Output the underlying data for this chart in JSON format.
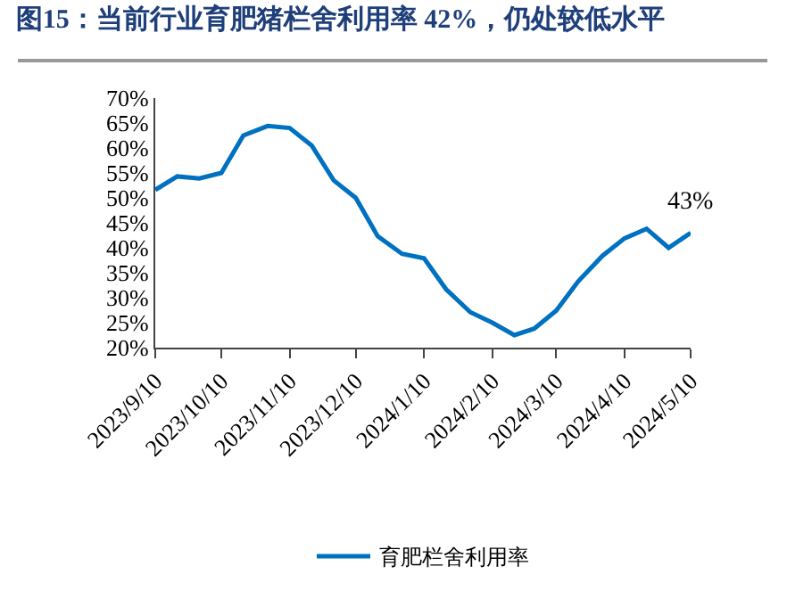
{
  "chart_data": {
    "type": "line",
    "title": "图15：当前行业育肥猪栏舍利用率 42%，仍处较低水平",
    "x": [
      "2023-09-10",
      "2023-09-20",
      "2023-09-30",
      "2023-10-10",
      "2023-10-20",
      "2023-10-31",
      "2023-11-10",
      "2023-11-20",
      "2023-11-30",
      "2023-12-10",
      "2023-12-20",
      "2023-12-31",
      "2024-01-10",
      "2024-01-20",
      "2024-01-31",
      "2024-02-10",
      "2024-02-20",
      "2024-02-29",
      "2024-03-10",
      "2024-03-20",
      "2024-03-31",
      "2024-04-10",
      "2024-04-20",
      "2024-04-30",
      "2024-05-10"
    ],
    "series": [
      {
        "name": "育肥栏舍利用率",
        "color": "#0070c0",
        "values": [
          51.6,
          54.3,
          53.9,
          55.0,
          62.5,
          64.4,
          64.0,
          60.5,
          53.5,
          50.0,
          42.3,
          38.8,
          37.9,
          31.7,
          27.1,
          25.0,
          22.5,
          23.8,
          27.4,
          33.3,
          38.4,
          41.9,
          43.8,
          40.0,
          43.0
        ]
      }
    ],
    "xlim": [
      "2023-09-10",
      "2024-05-10"
    ],
    "xticks": [
      {
        "value": "2023-09-10",
        "label": "2023/9/10"
      },
      {
        "value": "2023-10-10",
        "label": "2023/10/10"
      },
      {
        "value": "2023-11-10",
        "label": "2023/11/10"
      },
      {
        "value": "2023-12-10",
        "label": "2023/12/10"
      },
      {
        "value": "2024-01-10",
        "label": "2024/1/10"
      },
      {
        "value": "2024-02-10",
        "label": "2024/2/10"
      },
      {
        "value": "2024-03-10",
        "label": "2024/3/10"
      },
      {
        "value": "2024-04-10",
        "label": "2024/4/10"
      },
      {
        "value": "2024-05-10",
        "label": "2024/5/10"
      }
    ],
    "ylim": [
      20,
      70
    ],
    "yticks": [
      {
        "value": 20,
        "label": "20%"
      },
      {
        "value": 25,
        "label": "25%"
      },
      {
        "value": 30,
        "label": "30%"
      },
      {
        "value": 35,
        "label": "35%"
      },
      {
        "value": 40,
        "label": "40%"
      },
      {
        "value": 45,
        "label": "45%"
      },
      {
        "value": 50,
        "label": "50%"
      },
      {
        "value": 55,
        "label": "55%"
      },
      {
        "value": 60,
        "label": "60%"
      },
      {
        "value": 65,
        "label": "65%"
      },
      {
        "value": 70,
        "label": "70%"
      }
    ],
    "annotations": [
      {
        "text": "43%",
        "x": "2024-05-10",
        "y": 43
      }
    ],
    "grid": false,
    "legend": "bottom",
    "marker": "none",
    "line_style": "solid"
  }
}
